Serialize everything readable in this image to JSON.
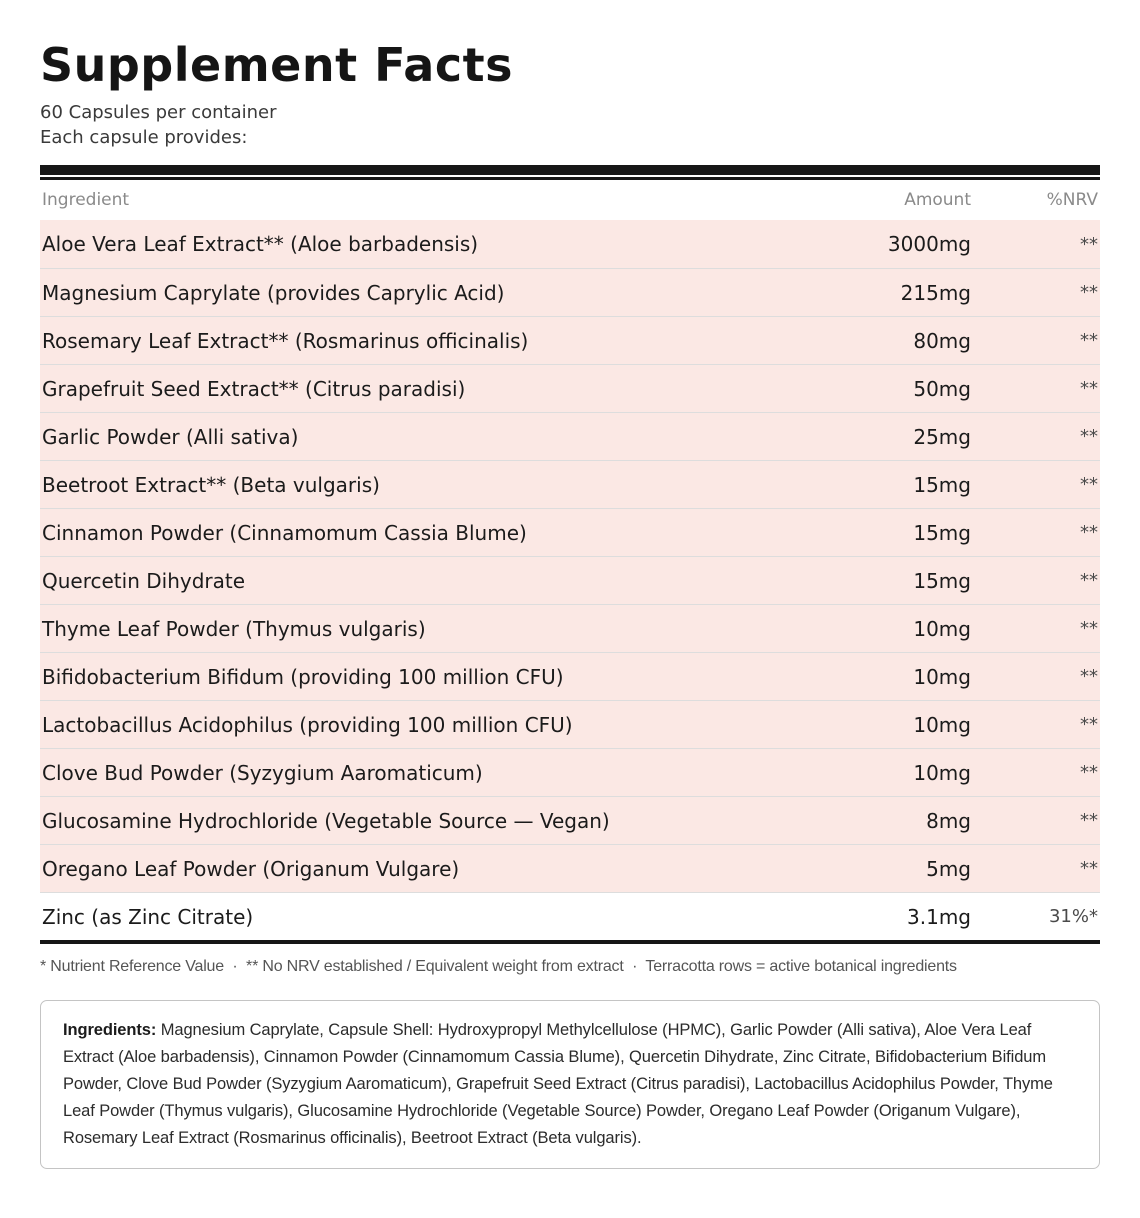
{
  "header": {
    "title": "Supplement Facts",
    "servings": "60 Capsules per container",
    "per_capsule": "Each capsule provides:"
  },
  "table": {
    "columns": {
      "ingredient": "Ingredient",
      "amount": "Amount",
      "nrv": "%NRV"
    },
    "rows": [
      {
        "name": "Aloe Vera Leaf Extract** (Aloe barbadensis)",
        "amount": "3000mg",
        "nrv": "**",
        "highlight": true
      },
      {
        "name": "Magnesium Caprylate (provides Caprylic Acid)",
        "amount": "215mg",
        "nrv": "**",
        "highlight": true
      },
      {
        "name": "Rosemary Leaf Extract** (Rosmarinus officinalis)",
        "amount": "80mg",
        "nrv": "**",
        "highlight": true
      },
      {
        "name": "Grapefruit Seed Extract** (Citrus paradisi)",
        "amount": "50mg",
        "nrv": "**",
        "highlight": true
      },
      {
        "name": "Garlic Powder (Alli sativa)",
        "amount": "25mg",
        "nrv": "**",
        "highlight": true
      },
      {
        "name": "Beetroot Extract** (Beta vulgaris)",
        "amount": "15mg",
        "nrv": "**",
        "highlight": true
      },
      {
        "name": "Cinnamon Powder (Cinnamomum Cassia Blume)",
        "amount": "15mg",
        "nrv": "**",
        "highlight": true
      },
      {
        "name": "Quercetin Dihydrate",
        "amount": "15mg",
        "nrv": "**",
        "highlight": true
      },
      {
        "name": "Thyme Leaf Powder (Thymus vulgaris)",
        "amount": "10mg",
        "nrv": "**",
        "highlight": true
      },
      {
        "name": "Bifidobacterium Bifidum (providing 100 million CFU)",
        "amount": "10mg",
        "nrv": "**",
        "highlight": true
      },
      {
        "name": "Lactobacillus Acidophilus (providing 100 million CFU)",
        "amount": "10mg",
        "nrv": "**",
        "highlight": true
      },
      {
        "name": "Clove Bud Powder (Syzygium Aaromaticum)",
        "amount": "10mg",
        "nrv": "**",
        "highlight": true
      },
      {
        "name": "Glucosamine Hydrochloride (Vegetable Source — Vegan)",
        "amount": "8mg",
        "nrv": "**",
        "highlight": true
      },
      {
        "name": "Oregano Leaf Powder (Origanum Vulgare)",
        "amount": "5mg",
        "nrv": "**",
        "highlight": true
      },
      {
        "name": "Zinc (as Zinc Citrate)",
        "amount": "3.1mg",
        "nrv": "31%*",
        "highlight": false
      }
    ]
  },
  "footnote": "* Nutrient Reference Value  ·  ** No NRV established / Equivalent weight from extract  ·  Terracotta rows = active botanical ingredients",
  "ingredients": {
    "label": "Ingredients:",
    "text": "Magnesium Caprylate, Capsule Shell: Hydroxypropyl Methylcellulose (HPMC), Garlic Powder (Alli sativa), Aloe Vera Leaf Extract (Aloe barbadensis), Cinnamon Powder (Cinnamomum Cassia Blume), Quercetin Dihydrate, Zinc Citrate, Bifidobacterium Bifidum Powder, Clove Bud Powder (Syzygium Aaromaticum), Grapefruit Seed Extract (Citrus paradisi), Lactobacillus Acidophilus Powder, Thyme Leaf Powder (Thymus vulgaris), Glucosamine Hydrochloride (Vegetable Source) Powder, Oregano Leaf Powder (Origanum Vulgare), Rosemary Leaf Extract (Rosmarinus officinalis), Beetroot Extract (Beta vulgaris)."
  },
  "colors": {
    "row_highlight": "#fbe8e4",
    "rule_black": "#161616",
    "row_divider": "#dddddd",
    "muted_header_text": "#8a8a8a",
    "footnote_text": "#555555"
  }
}
